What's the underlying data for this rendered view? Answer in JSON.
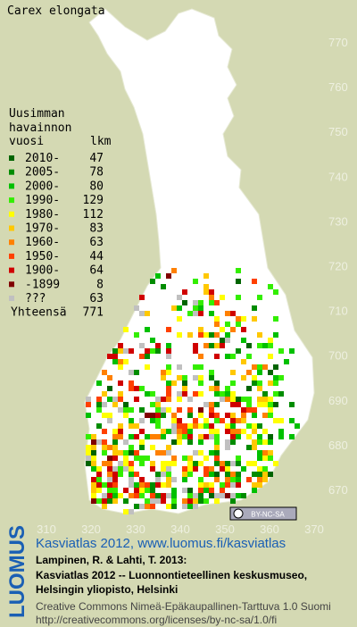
{
  "title": "Carex elongata",
  "legend": {
    "header": [
      "Uusimman",
      "havainnon",
      "vuosi"
    ],
    "count_header": "lkm",
    "entries": [
      {
        "label": "2010-",
        "count": 47,
        "color": "#006400"
      },
      {
        "label": "2005-",
        "count": 78,
        "color": "#008c00"
      },
      {
        "label": "2000-",
        "count": 80,
        "color": "#00c000"
      },
      {
        "label": "1990-",
        "count": 129,
        "color": "#33ee00"
      },
      {
        "label": "1980-",
        "count": 112,
        "color": "#ffff00"
      },
      {
        "label": "1970-",
        "count": 83,
        "color": "#ffc800"
      },
      {
        "label": "1960-",
        "count": 63,
        "color": "#ff8000"
      },
      {
        "label": "1950-",
        "count": 44,
        "color": "#ff4000"
      },
      {
        "label": "1900-",
        "count": 64,
        "color": "#d00000"
      },
      {
        "label": "-1899",
        "count": 8,
        "color": "#800000"
      },
      {
        "label": "???",
        "count": 63,
        "color": "#c0c0c0"
      }
    ],
    "total_label": "Yhteensä",
    "total": 771
  },
  "map": {
    "yticks": [
      770,
      760,
      750,
      740,
      730,
      720,
      710,
      700,
      690,
      680,
      670
    ],
    "xticks": [
      310,
      320,
      330,
      340,
      350,
      360,
      370
    ]
  },
  "license_badge": "BY-NC-SA",
  "footer": {
    "logo": "LUOMUS",
    "link": "Kasviatlas 2012, www.luomus.fi/kasviatlas",
    "citation": [
      "Lampinen, R. & Lahti, T. 2013:",
      "Kasviatlas 2012 -- Luonnontieteellinen keskusmuseo,",
      "Helsingin yliopisto, Helsinki"
    ],
    "license": [
      "Creative Commons Nimeä-Epäkaupallinen-Tarttuva 1.0 Suomi",
      "http://creativecommons.org/licenses/by-nc-sa/1.0/fi"
    ]
  }
}
